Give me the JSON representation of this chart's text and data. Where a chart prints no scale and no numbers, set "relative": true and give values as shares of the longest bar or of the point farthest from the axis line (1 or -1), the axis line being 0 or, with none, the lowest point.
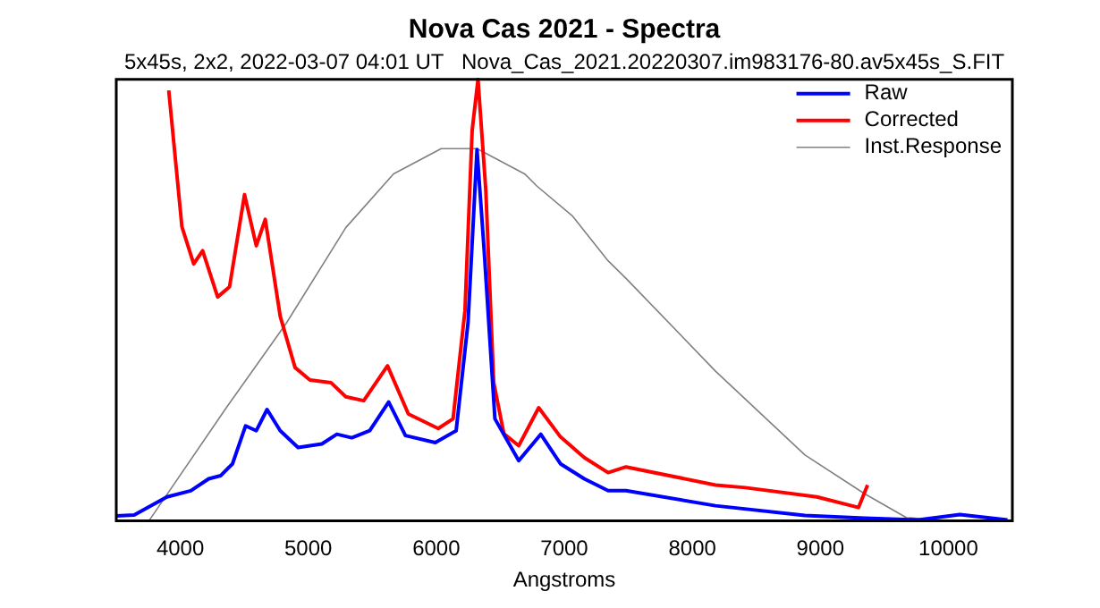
{
  "chart_data": {
    "type": "line",
    "title": "Nova Cas 2021 - Spectra",
    "subtitle": "5x45s, 2x2, 2022-03-07 04:01 UT   Nova_Cas_2021.20220307.im983176-80.av5x45s_S.FIT",
    "xlabel": "Angstroms",
    "relative": true,
    "xlim": [
      3500,
      10500
    ],
    "xticks": [
      4000,
      5000,
      6000,
      7000,
      8000,
      9000,
      10000
    ],
    "legend": "top right",
    "grid": false,
    "marker": "none",
    "line_style": "solid",
    "series": [
      {
        "name": "Raw",
        "color": "#0000ff",
        "x": [
          3500,
          3640,
          3896,
          4082,
          4222,
          4315,
          4408,
          4510,
          4594,
          4678,
          4781,
          4920,
          5106,
          5223,
          5340,
          5480,
          5628,
          5759,
          5992,
          6155,
          6248,
          6318,
          6374,
          6458,
          6644,
          6816,
          6970,
          7156,
          7342,
          7482,
          8181,
          8880,
          9346,
          9764,
          10090,
          10462
        ],
        "values": [
          0.011,
          0.013,
          0.054,
          0.068,
          0.095,
          0.102,
          0.129,
          0.215,
          0.204,
          0.252,
          0.204,
          0.166,
          0.174,
          0.196,
          0.188,
          0.204,
          0.269,
          0.193,
          0.177,
          0.204,
          0.449,
          0.841,
          0.612,
          0.231,
          0.136,
          0.196,
          0.129,
          0.095,
          0.068,
          0.068,
          0.034,
          0.012,
          0.006,
          0.002,
          0.014,
          0.002
        ]
      },
      {
        "name": "Corrected",
        "color": "#ff0000",
        "x": [
          3910,
          4013,
          4105,
          4175,
          4292,
          4385,
          4502,
          4594,
          4664,
          4781,
          4897,
          5013,
          5177,
          5293,
          5433,
          5619,
          5782,
          6015,
          6131,
          6224,
          6280,
          6326,
          6387,
          6448,
          6528,
          6644,
          6800,
          6970,
          7156,
          7342,
          7482,
          8181,
          8414,
          8973,
          9299,
          9369
        ],
        "values": [
          0.975,
          0.666,
          0.582,
          0.612,
          0.507,
          0.53,
          0.739,
          0.623,
          0.683,
          0.463,
          0.347,
          0.319,
          0.313,
          0.281,
          0.272,
          0.351,
          0.242,
          0.209,
          0.231,
          0.476,
          0.884,
          1,
          0.748,
          0.314,
          0.197,
          0.17,
          0.256,
          0.19,
          0.143,
          0.109,
          0.122,
          0.081,
          0.075,
          0.054,
          0.03,
          0.081
        ]
      },
      {
        "name": "Inst.Response",
        "color": "#808080",
        "x": [
          3756,
          4362,
          4827,
          5293,
          5666,
          6038,
          6318,
          6690,
          6783,
          7062,
          7342,
          7482,
          8181,
          8880,
          9346,
          9673,
          10000
        ],
        "values": [
          0,
          0.257,
          0.447,
          0.664,
          0.786,
          0.843,
          0.843,
          0.786,
          0.759,
          0.691,
          0.589,
          0.549,
          0.339,
          0.149,
          0.061,
          0.007,
          0
        ]
      }
    ]
  }
}
